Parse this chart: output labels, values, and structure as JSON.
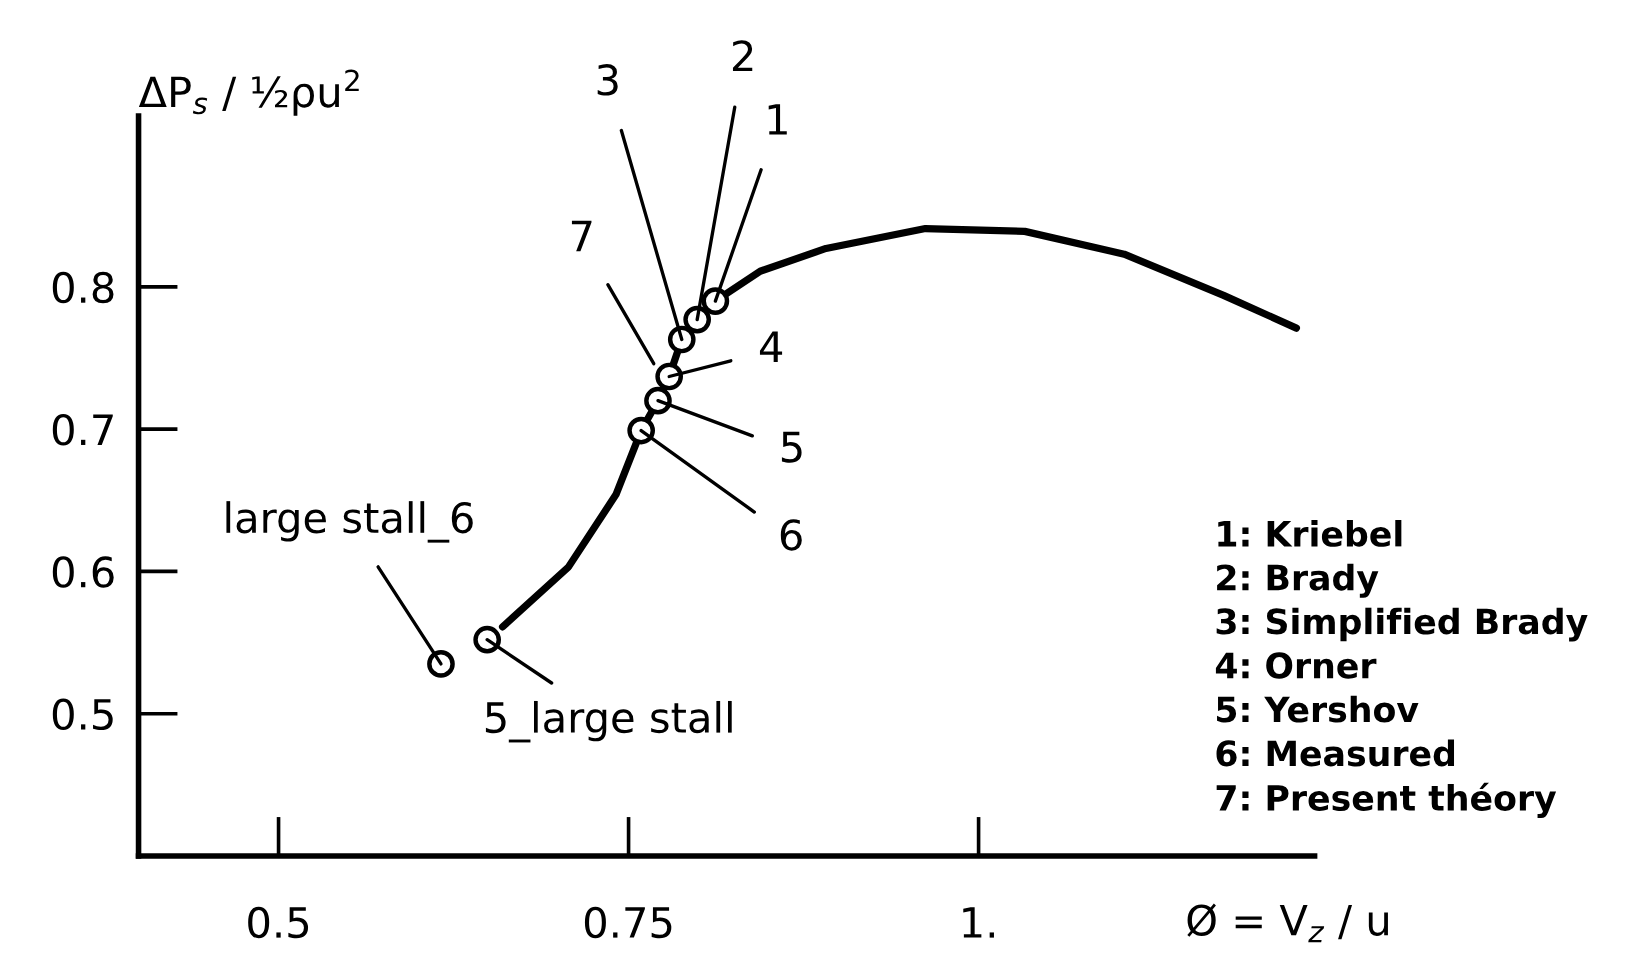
{
  "chart_data": {
    "type": "line",
    "xlabel": "Ø = V$_{z}$ / u",
    "ylabel": "ΔP$_{s}$ / ½ρu$^{2}$",
    "xlim": [
      0.4,
      1.24
    ],
    "ylim": [
      0.4,
      0.92
    ],
    "xticks": [
      0.5,
      0.75,
      {
        "value": 1,
        "label": "1."
      }
    ],
    "yticks": [
      0.5,
      0.6,
      0.7,
      0.8
    ],
    "grid": false,
    "legend": false,
    "series": [
      {
        "color": "#000000",
        "marker": "none",
        "line_style": "solid",
        "x": [
          0.66,
          0.707,
          0.741,
          0.759,
          0.771,
          0.779,
          0.788,
          0.799,
          0.812,
          0.844,
          0.891,
          0.962,
          1.033,
          1.104,
          1.175,
          1.227
        ],
        "values": [
          0.561,
          0.603,
          0.654,
          0.699,
          0.72,
          0.737,
          0.763,
          0.777,
          0.79,
          0.811,
          0.827,
          0.841,
          0.839,
          0.823,
          0.794,
          0.771
        ]
      },
      {
        "type": "scatter",
        "color": "#000000",
        "marker": "circle",
        "x": [
          0.812,
          0.799,
          0.788,
          0.779,
          0.771,
          0.759,
          0.616,
          0.649
        ],
        "values": [
          0.79,
          0.777,
          0.763,
          0.737,
          0.72,
          0.699,
          0.535,
          0.552
        ]
      }
    ],
    "annotations": [
      {
        "text": "1",
        "x": 0.812,
        "y": 0.79
      },
      {
        "text": "2",
        "x": 0.799,
        "y": 0.777
      },
      {
        "text": "3",
        "x": 0.788,
        "y": 0.763
      },
      {
        "text": "4",
        "x": 0.779,
        "y": 0.737
      },
      {
        "text": "5",
        "x": 0.771,
        "y": 0.72
      },
      {
        "text": "6",
        "x": 0.759,
        "y": 0.699
      },
      {
        "text": "7",
        "x": 0.768,
        "y": 0.746
      },
      {
        "text": "large stall_6",
        "x": 0.616,
        "y": 0.535
      },
      {
        "text": "5_large stall",
        "x": 0.649,
        "y": 0.552
      },
      "1: Kriebel",
      "2: Brady",
      "3: Simplified Brady",
      "4: Orner",
      "5: Yershov",
      "6: Measured",
      "7: Present théory"
    ]
  }
}
